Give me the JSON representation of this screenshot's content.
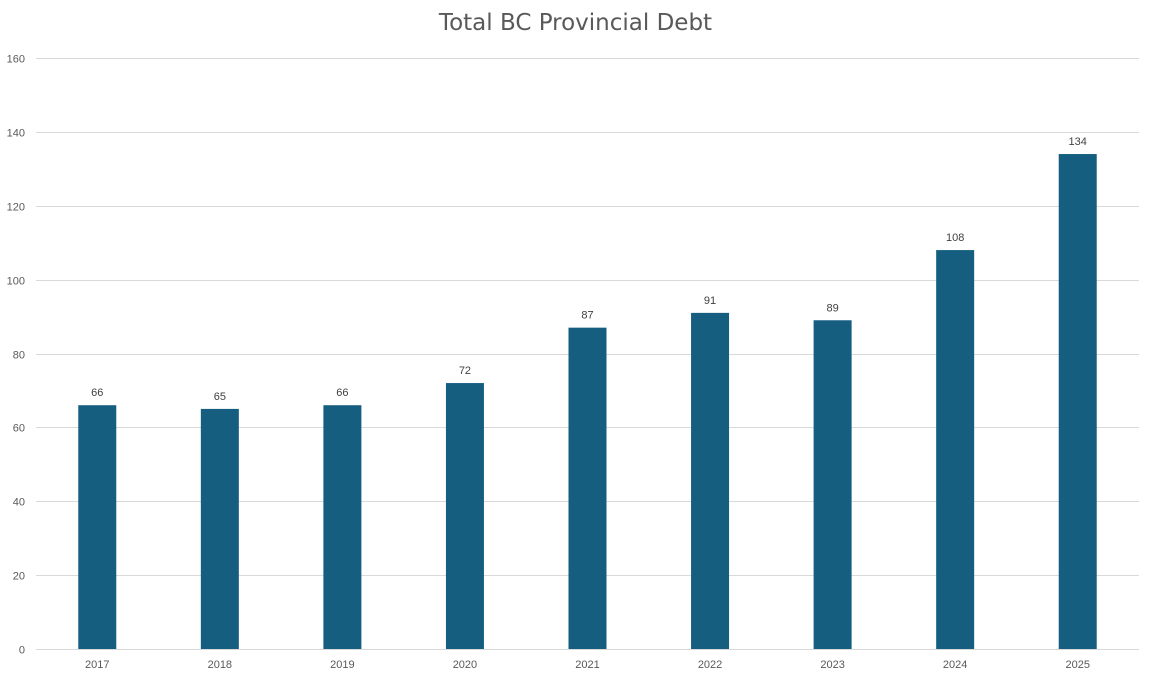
{
  "chart_data": {
    "type": "bar",
    "title": "Total BC Provincial Debt",
    "xlabel": "",
    "ylabel": "",
    "categories": [
      "2017",
      "2018",
      "2019",
      "2020",
      "2021",
      "2022",
      "2023",
      "2024",
      "2025"
    ],
    "values": [
      66,
      65,
      66,
      72,
      87,
      91,
      89,
      108,
      134
    ],
    "ylim": [
      0,
      160
    ],
    "yticks": [
      0,
      20,
      40,
      60,
      80,
      100,
      120,
      140,
      160
    ],
    "grid": true,
    "legend": "none",
    "data_labels": true,
    "colors": {
      "bar": "#165e80",
      "grid": "#d9d9d9",
      "text": "#595959"
    }
  }
}
